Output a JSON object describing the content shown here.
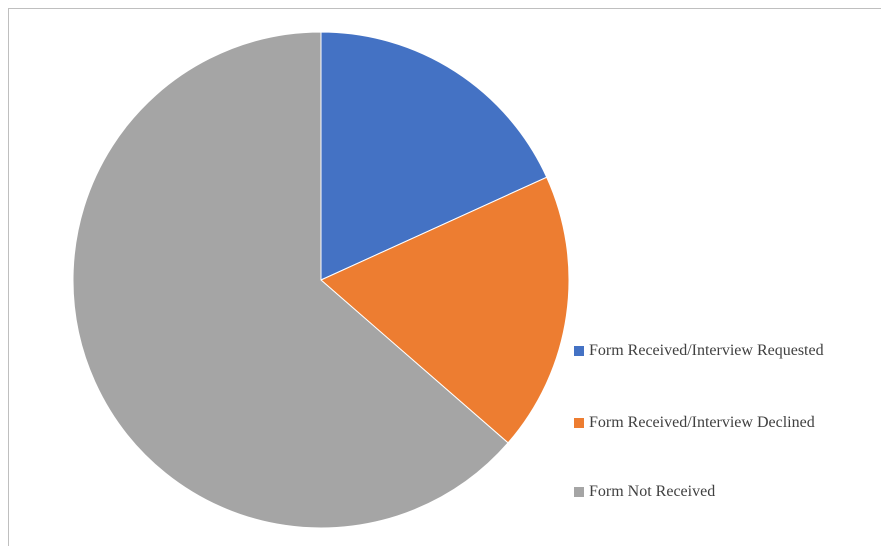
{
  "chart_data": {
    "type": "pie",
    "slices": [
      {
        "name": "Form Received/Interview Requested",
        "value": 18.2,
        "color": "#4472C4"
      },
      {
        "name": "Form Received/Interview Declined",
        "value": 18.2,
        "color": "#ED7D31"
      },
      {
        "name": "Form Not Received",
        "value": 63.6,
        "color": "#A5A5A5"
      }
    ],
    "start_angle_deg": 0,
    "direction": "clockwise",
    "legend_position": "right",
    "title": ""
  }
}
